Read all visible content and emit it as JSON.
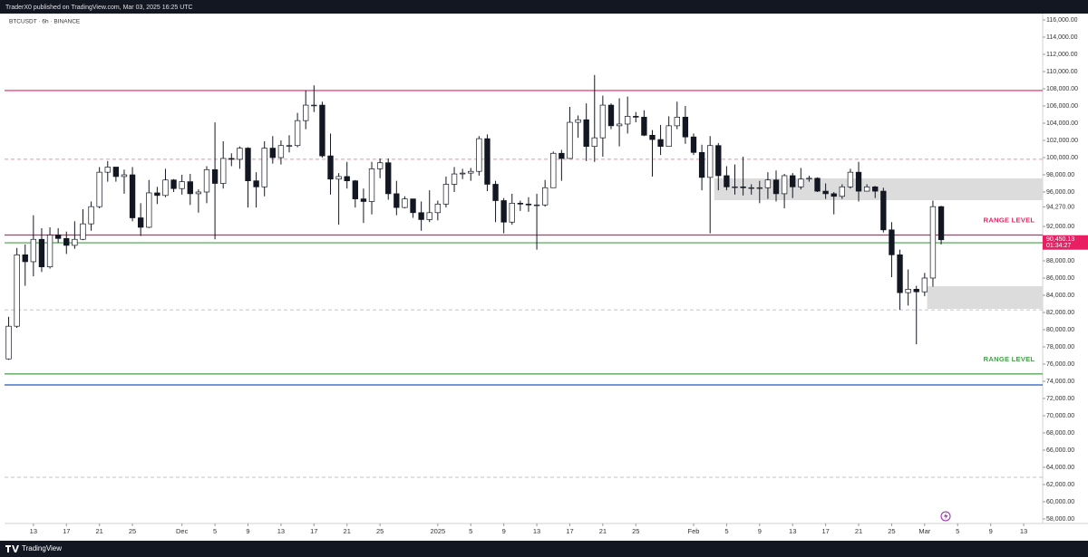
{
  "header": {
    "published": "TraderX0 published on TradingView.com, Mar 03, 2025 16:25 UTC",
    "symbol": "BTCUSDT · 6h · BINANCE",
    "brand": "TradingView"
  },
  "chart_data": {
    "type": "candlestick",
    "open": [
      76600,
      80400,
      88700,
      87900,
      90500,
      87300,
      91000,
      90600,
      89800,
      90500,
      92300,
      94300,
      98300,
      98900,
      97800,
      98000,
      93000,
      91900,
      95900,
      95600,
      97400,
      96400,
      97200,
      95800,
      96000,
      98600,
      97000,
      99900,
      99800,
      101100,
      97300,
      96600,
      101100,
      100000,
      101400,
      101400,
      104300,
      106100,
      106100,
      100200,
      97500,
      97800,
      97300,
      95200,
      94900,
      98700,
      99400,
      95800,
      94200,
      95200,
      93600,
      92800,
      93600,
      94600,
      96900,
      98100,
      98200,
      98400,
      102200,
      96900,
      95000,
      92500,
      94700,
      94600,
      94500,
      94500,
      96500,
      100500,
      99900,
      104100,
      104400,
      101300,
      102300,
      106100,
      103700,
      103900,
      104800,
      104700,
      102600,
      102100,
      101300,
      103700,
      104700,
      102400,
      100600,
      97700,
      101400,
      97900,
      96600,
      96600,
      96500,
      96500,
      96500,
      97400,
      95800,
      97900,
      96600,
      97500,
      97600,
      96100,
      95800,
      95500,
      96600,
      98300,
      96100,
      96600,
      96100,
      91600,
      88700,
      84300,
      84700,
      84400,
      86000,
      94300
    ],
    "high": [
      81500,
      89500,
      89900,
      93300,
      91800,
      91900,
      91800,
      91400,
      92600,
      94000,
      94900,
      98900,
      99600,
      98800,
      98600,
      98900,
      94700,
      97400,
      96600,
      98700,
      97500,
      98000,
      98100,
      96300,
      99000,
      104100,
      101900,
      100500,
      101300,
      101200,
      98300,
      101900,
      102500,
      102000,
      102600,
      105200,
      107800,
      108400,
      106500,
      102800,
      98200,
      99500,
      97400,
      96400,
      99500,
      99900,
      99900,
      97300,
      95500,
      95200,
      94900,
      96200,
      95000,
      97800,
      98900,
      98700,
      98800,
      102500,
      102700,
      97300,
      95300,
      95800,
      95000,
      95400,
      95800,
      97400,
      100700,
      100900,
      105900,
      104900,
      106300,
      109600,
      107200,
      106300,
      106900,
      107100,
      105300,
      105500,
      103200,
      103800,
      104800,
      106500,
      106000,
      102800,
      101500,
      102500,
      101700,
      99000,
      99200,
      100100,
      96900,
      97300,
      98300,
      98500,
      98100,
      98200,
      98800,
      97900,
      97700,
      97000,
      96000,
      96900,
      98700,
      99500,
      96900,
      96700,
      96500,
      92500,
      89300,
      87000,
      85100,
      86600,
      95000,
      94400
    ],
    "low": [
      76500,
      80200,
      85100,
      86200,
      86700,
      87100,
      90100,
      88800,
      89400,
      90400,
      91500,
      94100,
      97200,
      97200,
      95800,
      92600,
      90900,
      91800,
      94600,
      95400,
      96000,
      95700,
      94500,
      93600,
      94700,
      90500,
      96400,
      99000,
      98700,
      94200,
      94200,
      95500,
      99300,
      99200,
      100600,
      101200,
      103300,
      105300,
      100000,
      95700,
      92200,
      96400,
      94200,
      92400,
      93400,
      97600,
      95100,
      93300,
      94100,
      93000,
      91500,
      92500,
      92700,
      94200,
      96000,
      97500,
      97300,
      97900,
      96100,
      92500,
      91200,
      92200,
      93800,
      93700,
      89300,
      94300,
      96500,
      97300,
      99900,
      102300,
      99600,
      99500,
      100100,
      103300,
      101300,
      102800,
      104100,
      102500,
      97800,
      100300,
      101300,
      103300,
      101600,
      100300,
      96200,
      91200,
      96200,
      96200,
      95700,
      95600,
      95700,
      94700,
      95200,
      94900,
      94100,
      95300,
      96300,
      97200,
      96000,
      95200,
      93400,
      95200,
      96400,
      94900,
      96100,
      95300,
      91300,
      86100,
      82300,
      82800,
      78300,
      83900,
      85000,
      89900
    ],
    "close": [
      80400,
      88700,
      87900,
      90500,
      87300,
      91000,
      90600,
      89800,
      90500,
      92300,
      94300,
      98300,
      98900,
      97800,
      98000,
      93000,
      91900,
      95900,
      95600,
      97400,
      96400,
      97200,
      95800,
      96000,
      98600,
      97000,
      99900,
      99800,
      101100,
      97300,
      96600,
      101100,
      100000,
      101400,
      101400,
      104300,
      106100,
      106100,
      100200,
      97500,
      97800,
      97300,
      95200,
      94900,
      98700,
      99400,
      95800,
      94200,
      95200,
      93600,
      92800,
      93600,
      94600,
      96900,
      98100,
      98200,
      98400,
      102200,
      96900,
      95000,
      92500,
      94700,
      94600,
      94500,
      94500,
      96500,
      100500,
      99900,
      104100,
      104400,
      101300,
      102300,
      106100,
      103700,
      103900,
      104800,
      104700,
      102600,
      102100,
      101300,
      103700,
      104700,
      102400,
      100600,
      97700,
      101400,
      97900,
      96600,
      96600,
      96500,
      96500,
      96500,
      97400,
      95800,
      97900,
      96600,
      97500,
      97600,
      96100,
      95800,
      95500,
      96600,
      98300,
      96100,
      96600,
      96100,
      91600,
      88700,
      84300,
      84700,
      84400,
      86000,
      94300,
      90450.13
    ],
    "up_color": "#ffffff",
    "down_color": "#131722",
    "outline_color": "#131722",
    "xlim": [
      -0.5,
      125.3
    ],
    "xticks": [
      {
        "value": 3,
        "label": "13"
      },
      {
        "value": 7,
        "label": "17"
      },
      {
        "value": 11,
        "label": "21"
      },
      {
        "value": 15,
        "label": "25"
      },
      {
        "value": 21,
        "label": "Dec"
      },
      {
        "value": 25,
        "label": "5"
      },
      {
        "value": 29,
        "label": "9"
      },
      {
        "value": 33,
        "label": "13"
      },
      {
        "value": 37,
        "label": "17"
      },
      {
        "value": 41,
        "label": "21"
      },
      {
        "value": 45,
        "label": "25"
      },
      {
        "value": 52,
        "label": "2025"
      },
      {
        "value": 56,
        "label": "5"
      },
      {
        "value": 60,
        "label": "9"
      },
      {
        "value": 64,
        "label": "13"
      },
      {
        "value": 68,
        "label": "17"
      },
      {
        "value": 72,
        "label": "21"
      },
      {
        "value": 76,
        "label": "25"
      },
      {
        "value": 83,
        "label": "Feb"
      },
      {
        "value": 87,
        "label": "5"
      },
      {
        "value": 91,
        "label": "9"
      },
      {
        "value": 95,
        "label": "13"
      },
      {
        "value": 99,
        "label": "17"
      },
      {
        "value": 103,
        "label": "21"
      },
      {
        "value": 107,
        "label": "25"
      },
      {
        "value": 111,
        "label": "Mar"
      },
      {
        "value": 115,
        "label": "5"
      },
      {
        "value": 119,
        "label": "9"
      },
      {
        "value": 123,
        "label": "13"
      }
    ],
    "ylim": [
      57470,
      116740
    ],
    "yticks": [
      {
        "value": 116000,
        "label": "116,000.00"
      },
      {
        "value": 114000,
        "label": "114,000.00"
      },
      {
        "value": 112000,
        "label": "112,000.00"
      },
      {
        "value": 110000,
        "label": "110,000.00"
      },
      {
        "value": 108000,
        "label": "108,000.00"
      },
      {
        "value": 106000,
        "label": "106,000.00"
      },
      {
        "value": 104000,
        "label": "104,000.00"
      },
      {
        "value": 102000,
        "label": "102,000.00"
      },
      {
        "value": 100000,
        "label": "100,000.00"
      },
      {
        "value": 98000,
        "label": "98,000.00"
      },
      {
        "value": 96000,
        "label": "96,000.00"
      },
      {
        "value": 94270,
        "label": "94,270.00"
      },
      {
        "value": 92000,
        "label": "92,000.00"
      },
      {
        "value": 90000,
        "label": "90,000.00"
      },
      {
        "value": 88000,
        "label": "88,000.00"
      },
      {
        "value": 86000,
        "label": "86,000.00"
      },
      {
        "value": 84000,
        "label": "84,000.00"
      },
      {
        "value": 82000,
        "label": "82,000.00"
      },
      {
        "value": 80000,
        "label": "80,000.00"
      },
      {
        "value": 78000,
        "label": "78,000.00"
      },
      {
        "value": 76000,
        "label": "76,000.00"
      },
      {
        "value": 74000,
        "label": "74,000.00"
      },
      {
        "value": 72000,
        "label": "72,000.00"
      },
      {
        "value": 70000,
        "label": "70,000.00"
      },
      {
        "value": 68000,
        "label": "68,000.00"
      },
      {
        "value": 66000,
        "label": "66,000.00"
      },
      {
        "value": 64000,
        "label": "64,000.00"
      },
      {
        "value": 62000,
        "label": "62,000.00"
      },
      {
        "value": 60000,
        "label": "60,000.00"
      },
      {
        "value": 58000,
        "label": "58,000.00"
      }
    ],
    "lines": [
      {
        "level": 107800,
        "color": "#e91e63",
        "style": "solid"
      },
      {
        "level": 99800,
        "color": "#ef6a92",
        "style": "dashed"
      },
      {
        "level": 91000,
        "color": "#e91e63",
        "style": "solid",
        "label": "RANGE LEVEL"
      },
      {
        "level": 90100,
        "color": "#43a047",
        "style": "solid"
      },
      {
        "level": 82300,
        "color": "#b0b0b0",
        "style": "dashed"
      },
      {
        "level": 74850,
        "color": "#43a047",
        "style": "solid",
        "label": "RANGE LEVEL"
      },
      {
        "level": 73580,
        "color": "#1e5bbf",
        "style": "solid"
      },
      {
        "level": 62840,
        "color": "#b0b0b0",
        "style": "dashed"
      }
    ],
    "boxes": [
      {
        "start": 85.5,
        "top": 97580,
        "bottom": 95050,
        "color": "#dcdcdc"
      },
      {
        "start": 111.3,
        "top": 85050,
        "bottom": 82420,
        "color": "#dcdcdc"
      }
    ],
    "last_price": {
      "value": 90450.13,
      "label": "90,450.13"
    },
    "countdown": "01:34:27",
    "last_price_color": "#e91e63"
  }
}
